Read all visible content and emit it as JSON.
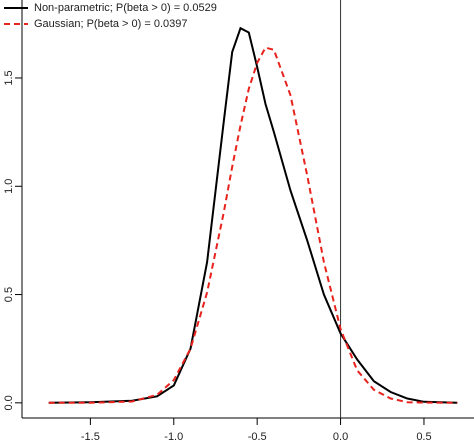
{
  "chart_data": {
    "type": "line",
    "x": [
      -1.75,
      -1.5,
      -1.25,
      -1.1,
      -1.0,
      -0.9,
      -0.8,
      -0.7,
      -0.65,
      -0.6,
      -0.55,
      -0.5,
      -0.45,
      -0.4,
      -0.3,
      -0.2,
      -0.1,
      0,
      0.1,
      0.2,
      0.3,
      0.4,
      0.5,
      0.7
    ],
    "series": [
      {
        "name": "Non-parametric; P(beta > 0) = 0.0529",
        "color": "#000000",
        "linestyle": "solid",
        "values": [
          0,
          0.003,
          0.01,
          0.03,
          0.08,
          0.25,
          0.65,
          1.3,
          1.62,
          1.73,
          1.71,
          1.55,
          1.38,
          1.25,
          0.98,
          0.75,
          0.5,
          0.32,
          0.2,
          0.1,
          0.05,
          0.02,
          0.005,
          0
        ]
      },
      {
        "name": "Gaussian; P(beta > 0) = 0.0397",
        "color": "#e8221c",
        "linestyle": "dashed",
        "values": [
          0,
          0,
          0.006,
          0.037,
          0.105,
          0.25,
          0.51,
          0.88,
          1.09,
          1.28,
          1.45,
          1.57,
          1.64,
          1.63,
          1.42,
          1.05,
          0.65,
          0.34,
          0.15,
          0.06,
          0.02,
          0.003,
          0.001,
          0
        ]
      }
    ],
    "vline": 0,
    "xlim": [
      -1.91,
      0.8
    ],
    "ylim": [
      -0.07,
      1.86
    ],
    "xticks": [
      -1.5,
      {
        "value": -1.0,
        "label": "-1.0"
      },
      -0.5,
      {
        "value": 0,
        "label": "0.0"
      },
      0.5
    ],
    "yticks": [
      {
        "value": 0,
        "label": "0.0"
      },
      0.5,
      {
        "value": 1.0,
        "label": "1.0"
      },
      1.5
    ],
    "legend": "top-left"
  }
}
